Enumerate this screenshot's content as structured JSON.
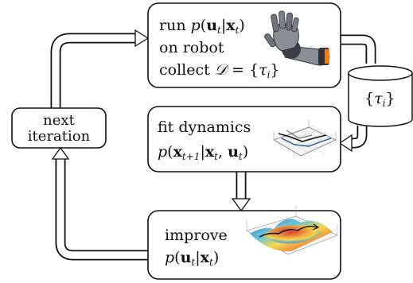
{
  "boxes": {
    "run": {
      "line1_prefix": "run ",
      "line1_math": "p(u",
      "line2": "on robot",
      "line3_prefix": "collect ",
      "line3_math": "𝒟 = {τ",
      "math_full": "p(u_t|x_t), 𝒟 = {τ_i}"
    },
    "storage": {
      "label": "{τ",
      "sub": "i",
      "suffix": "}"
    },
    "next": {
      "line1": "next",
      "line2": "iteration"
    },
    "fit": {
      "line1": "fit dynamics",
      "line2_math": "p(x_{t+1}|x_t, u_t)"
    },
    "improve": {
      "line1": "improve",
      "line2_math": "p(u_t|x_t)"
    }
  },
  "colors": {
    "stroke": "#111111",
    "box_fill": "#ffffff",
    "robot_metal": "#8a8f96",
    "robot_dark": "#2f3338",
    "robot_accent": "#f07d1c",
    "surface_high": "#d7262b",
    "surface_mid": "#f2d54a",
    "surface_low": "#2f74c6"
  },
  "icons": [
    "robot-hand-icon",
    "dynamics-plot-icon",
    "policy-surface-icon",
    "data-cylinder-icon"
  ]
}
